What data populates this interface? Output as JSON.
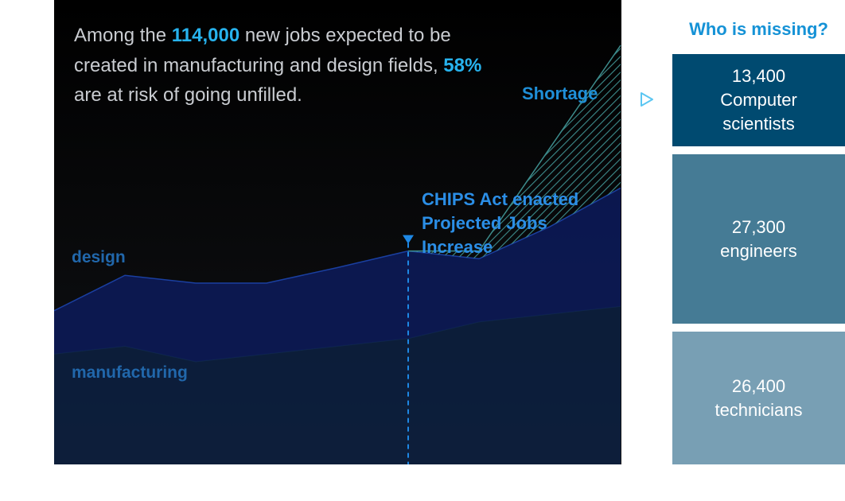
{
  "headline": {
    "part1": "Among the ",
    "jobs": "114,000",
    "part2": " new jobs expected to be created in manufacturing and design fields, ",
    "pct": "58%",
    "part3": " are at risk of going unfilled."
  },
  "annotation": {
    "line1": "CHIPS Act enacted",
    "line2": "Projected Jobs",
    "line3": "Increase"
  },
  "sidebar": {
    "title": "Who is missing?",
    "items": [
      {
        "value": "13,400",
        "label": "Computer scientists",
        "color": "#004a70"
      },
      {
        "value": "27,300",
        "label": "engineers",
        "color": "#457b95"
      },
      {
        "value": "26,400",
        "label": "technicians",
        "color": "#789fb4"
      }
    ]
  },
  "colors": {
    "highlight": "#27b3ee",
    "label_blue": "#2167ab",
    "annotation_blue": "#2b8ee6",
    "shortage_hatch": "#3d8c8c",
    "arrow": "#5bc6f2"
  },
  "chart_data": {
    "type": "area",
    "x": [
      0,
      1,
      2,
      3,
      4,
      5,
      6,
      7,
      8
    ],
    "series": [
      {
        "name": "manufacturing",
        "values": [
          1.0,
          1.07,
          0.93,
          1.0,
          1.07,
          1.14,
          1.29,
          1.36,
          1.43
        ],
        "color": "#0d1f3c"
      },
      {
        "name": "design",
        "values": [
          0.39,
          0.64,
          0.71,
          0.64,
          0.71,
          0.79,
          0.57,
          0.79,
          1.07
        ],
        "color": "#0c1a56"
      },
      {
        "name": "Shortage",
        "values": [
          0,
          0,
          0,
          0,
          0,
          0,
          0.07,
          0.71,
          1.29
        ],
        "color": "#3d8c8c"
      }
    ],
    "event_index": 5,
    "ylim": [
      0,
      4.2
    ],
    "grid": false,
    "legend": "inline labels"
  }
}
